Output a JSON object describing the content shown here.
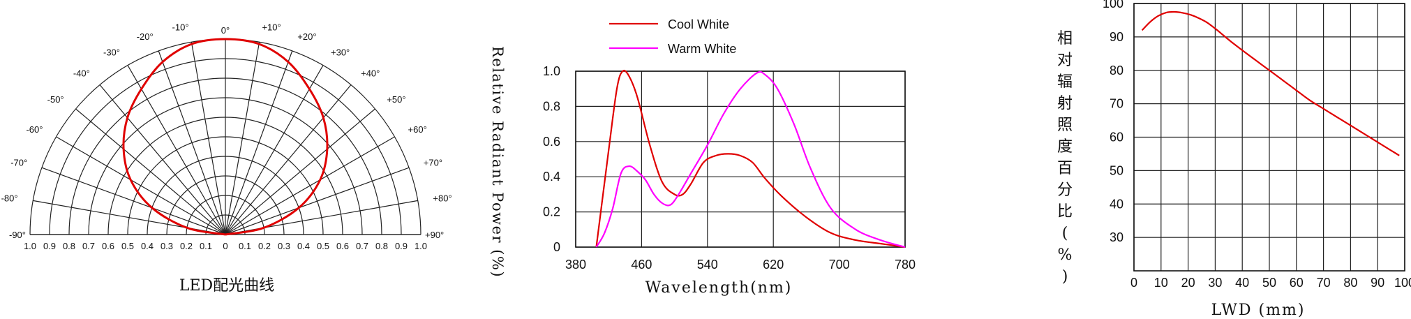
{
  "chart_data": [
    {
      "type": "polar",
      "title": "LED配光曲线",
      "angle_labels": [
        "-90°",
        "-80°",
        "-70°",
        "-60°",
        "-50°",
        "-40°",
        "-30°",
        "-20°",
        "-10°",
        "0°",
        "+10°",
        "+20°",
        "+30°",
        "+40°",
        "+50°",
        "+60°",
        "+70°",
        "+80°",
        "+90°"
      ],
      "radial_labels_left": [
        "1.0",
        "0.9",
        "0.8",
        "0.7",
        "0.6",
        "0.5",
        "0.4",
        "0.3",
        "0.2",
        "0.1",
        "0"
      ],
      "radial_labels_right": [
        "0.1",
        "0.2",
        "0.3",
        "0.4",
        "0.5",
        "0.6",
        "0.7",
        "0.8",
        "0.9",
        "1.0"
      ],
      "rlim": [
        0,
        1
      ],
      "series": [
        {
          "color": "#e00000",
          "angles": [
            -90,
            -80,
            -70,
            -60,
            -50,
            -40,
            -30,
            -20,
            -10,
            0,
            10,
            20,
            30,
            40,
            50,
            60,
            70,
            80,
            90
          ],
          "values": [
            0.0,
            0.2,
            0.4,
            0.56,
            0.68,
            0.78,
            0.86,
            0.94,
            0.99,
            1.0,
            0.99,
            0.94,
            0.86,
            0.78,
            0.68,
            0.56,
            0.4,
            0.2,
            0.0
          ]
        }
      ]
    },
    {
      "type": "line",
      "xlabel": "Wavelength(nm)",
      "ylabel": "Relative Radiant Power (%)",
      "xlim": [
        380,
        780
      ],
      "ylim": [
        0,
        1
      ],
      "x_ticks": [
        "380",
        "460",
        "540",
        "620",
        "700",
        "780"
      ],
      "y_ticks": [
        "0",
        "0.2",
        "0.4",
        "0.6",
        "0.8",
        "1.0"
      ],
      "legend_position": "top",
      "series": [
        {
          "name": "Cool White",
          "color": "#e00000",
          "x": [
            405,
            420,
            430,
            437,
            445,
            455,
            470,
            485,
            500,
            510,
            520,
            535,
            550,
            565,
            580,
            595,
            610,
            630,
            660,
            690,
            720,
            750,
            780
          ],
          "y": [
            0.0,
            0.55,
            0.9,
            1.0,
            0.97,
            0.85,
            0.58,
            0.37,
            0.3,
            0.3,
            0.36,
            0.48,
            0.52,
            0.53,
            0.52,
            0.48,
            0.39,
            0.29,
            0.17,
            0.08,
            0.04,
            0.02,
            0.0
          ]
        },
        {
          "name": "Warm White",
          "color": "#ff00ff",
          "x": [
            405,
            415,
            425,
            435,
            445,
            455,
            465,
            475,
            485,
            495,
            505,
            520,
            540,
            560,
            580,
            600,
            610,
            625,
            645,
            665,
            690,
            720,
            750,
            780
          ],
          "y": [
            0.0,
            0.08,
            0.22,
            0.42,
            0.46,
            0.43,
            0.38,
            0.3,
            0.25,
            0.24,
            0.3,
            0.42,
            0.58,
            0.76,
            0.9,
            0.99,
            0.98,
            0.9,
            0.7,
            0.45,
            0.22,
            0.1,
            0.04,
            0.0
          ]
        }
      ]
    },
    {
      "type": "line",
      "xlabel": "LWD (mm)",
      "ylabel": "相对辐射照度百分比(%)",
      "xlim": [
        0,
        100
      ],
      "ylim": [
        20,
        100
      ],
      "x_ticks": [
        "0",
        "10",
        "20",
        "30",
        "40",
        "50",
        "60",
        "70",
        "80",
        "90",
        "100"
      ],
      "y_ticks": [
        "30",
        "40",
        "50",
        "60",
        "70",
        "80",
        "90",
        "100"
      ],
      "series": [
        {
          "color": "#e00000",
          "x": [
            3,
            6,
            9,
            12,
            15,
            18,
            21,
            24,
            27,
            30,
            33,
            36,
            40,
            45,
            50,
            55,
            60,
            65,
            70,
            75,
            80,
            85,
            90,
            95,
            98
          ],
          "y": [
            92,
            94.5,
            96.3,
            97.3,
            97.5,
            97.2,
            96.6,
            95.6,
            94.3,
            92.5,
            90.5,
            88.5,
            86,
            83,
            80,
            77,
            74,
            71,
            68.5,
            66,
            63.5,
            61,
            58.5,
            56,
            54.5
          ]
        }
      ]
    }
  ]
}
